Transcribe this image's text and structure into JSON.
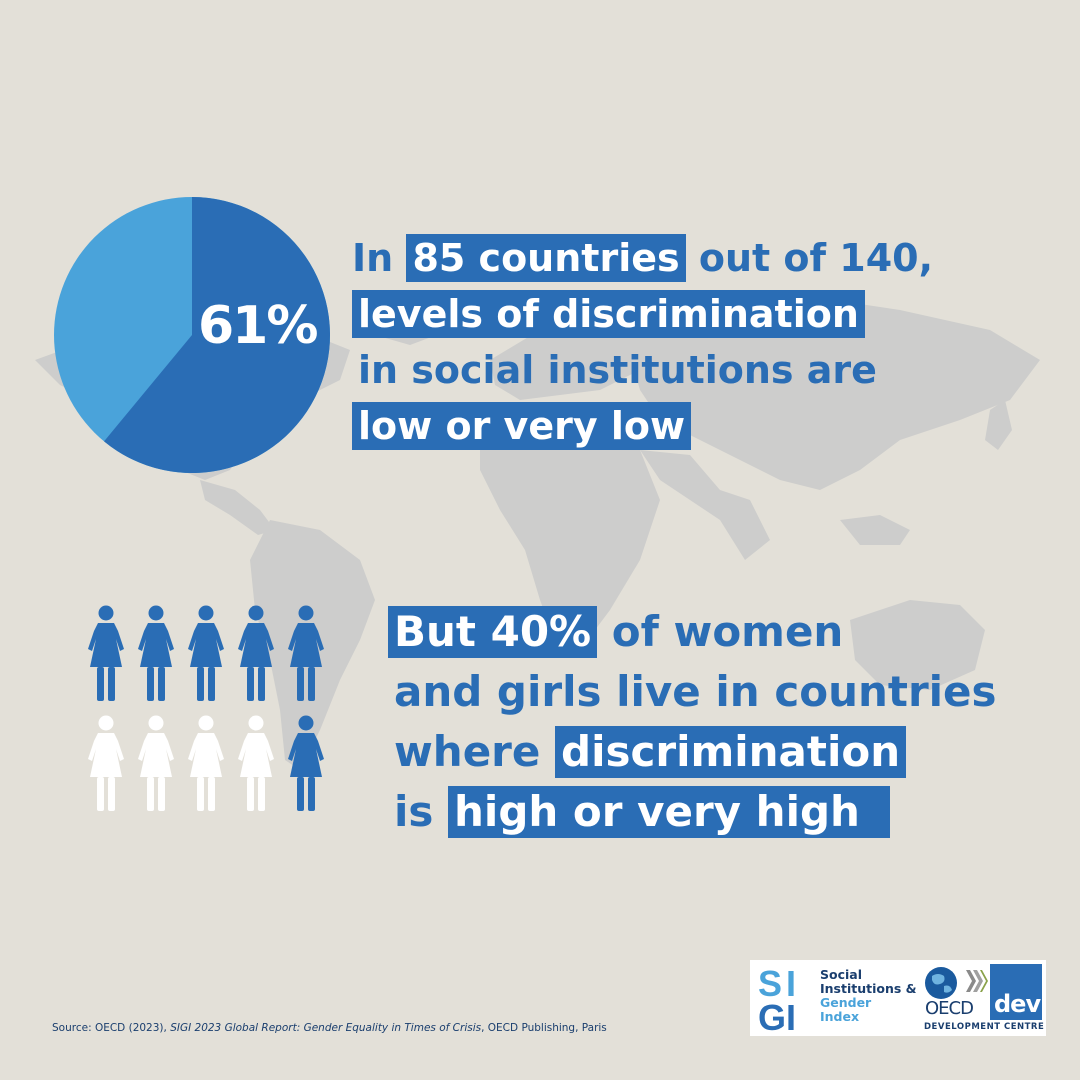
{
  "colors": {
    "background": "#e3e0d8",
    "map": "#cdcdcc",
    "primary": "#2a6db5",
    "light": "#4aa3da",
    "white": "#ffffff"
  },
  "icons": {
    "map": "world-map-silhouette",
    "person": "woman-figure-icon"
  },
  "pie": {
    "label": "61%",
    "value_percent": 61
  },
  "statement1": {
    "line1_pre": "In",
    "line1_hl": "85 countries",
    "line1_post": "out of 140,",
    "line2_hl": "levels of discrimination",
    "line3": "in social institutions are",
    "line4_hl": "low or very low"
  },
  "statement2": {
    "line1_hl": "But 40%",
    "line1_post": "of women",
    "line2": "and girls live in countries",
    "line3_pre": "where",
    "line3_hl": "discrimination",
    "line4_pre": "is",
    "line4_hl": "high or very high"
  },
  "people_grid": {
    "total": 10,
    "highlighted_percent": 40,
    "filled": [
      true,
      true,
      true,
      true,
      true,
      false,
      false,
      false,
      false,
      true
    ]
  },
  "source": {
    "prefix": "Source: OECD (2023), ",
    "title": "SIGI 2023 Global Report: Gender Equality in Times of Crisis",
    "suffix": ", OECD Publishing, Paris"
  },
  "logo": {
    "sigi_line1": "Social",
    "sigi_line2": "Institutions &",
    "sigi_line3": "Gender",
    "sigi_line4": "Index",
    "oecd": "OECD",
    "dev": "dev",
    "development_centre": "DEVELOPMENT  CENTRE"
  }
}
